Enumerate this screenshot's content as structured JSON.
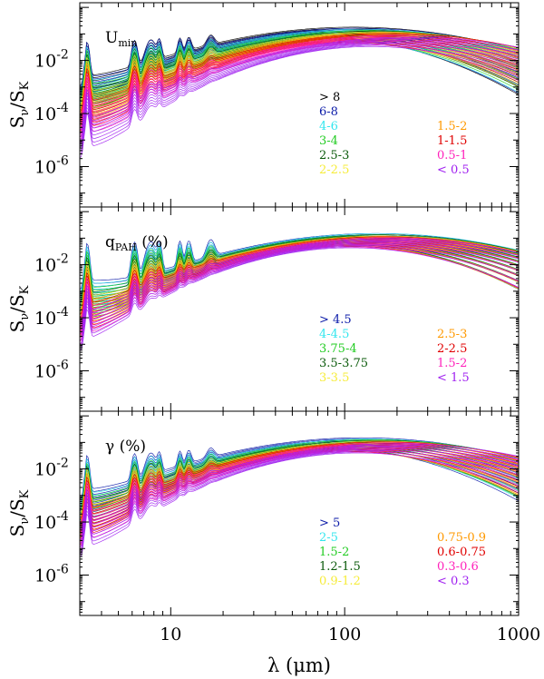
{
  "figure": {
    "xlabel": "λ (μm)",
    "ylabel_main": "S",
    "ylabel_sub1": "ν",
    "ylabel_mid": "/S",
    "ylabel_sub2": "K",
    "x_tick_labels": [
      "10",
      "100",
      "1000"
    ],
    "y_tick_labels": [
      {
        "base": "10",
        "exp": "-2"
      },
      {
        "base": "10",
        "exp": "-4"
      },
      {
        "base": "10",
        "exp": "-6"
      }
    ]
  },
  "chart_data": [
    {
      "type": "line",
      "title_main": "U",
      "title_sub": "min",
      "title_suffix": "",
      "xlabel": "λ (μm)",
      "ylabel": "Sν/SK",
      "xscale": "log",
      "yscale": "log",
      "xlim": [
        3,
        1000
      ],
      "ylim": [
        3e-08,
        1.5
      ],
      "x_ticks": [
        10,
        100,
        1000
      ],
      "y_ticks": [
        0.01,
        0.0001,
        1e-06
      ],
      "legend_left": [
        {
          "label": "> 8",
          "color": "#000000"
        },
        {
          "label": "6-8",
          "color": "#0a1aa8"
        },
        {
          "label": "4-6",
          "color": "#33e6ee"
        },
        {
          "label": "3-4",
          "color": "#22cc22"
        },
        {
          "label": "2.5-3",
          "color": "#0a5a0a"
        },
        {
          "label": "2-2.5",
          "color": "#f6ec3a"
        }
      ],
      "legend_right": [
        {
          "label": "1.5-2",
          "color": "#ff9900"
        },
        {
          "label": "1-1.5",
          "color": "#e00000"
        },
        {
          "label": "0.5-1",
          "color": "#ff22bb"
        },
        {
          "label": "< 0.5",
          "color": "#a020f0"
        }
      ],
      "series_summary": [
        {
          "name": "> 8",
          "peak_wavelength_um": 90,
          "peak_value": 0.12,
          "pah_level": 0.003
        },
        {
          "name": "6-8",
          "peak_wavelength_um": 95,
          "peak_value": 0.11,
          "pah_level": 0.003
        },
        {
          "name": "4-6",
          "peak_wavelength_um": 100,
          "peak_value": 0.1,
          "pah_level": 0.002
        },
        {
          "name": "3-4",
          "peak_wavelength_um": 110,
          "peak_value": 0.09,
          "pah_level": 0.0015
        },
        {
          "name": "2.5-3",
          "peak_wavelength_um": 120,
          "peak_value": 0.085,
          "pah_level": 0.001
        },
        {
          "name": "2-2.5",
          "peak_wavelength_um": 125,
          "peak_value": 0.08,
          "pah_level": 0.0008
        },
        {
          "name": "1.5-2",
          "peak_wavelength_um": 135,
          "peak_value": 0.075,
          "pah_level": 0.0005
        },
        {
          "name": "1-1.5",
          "peak_wavelength_um": 145,
          "peak_value": 0.07,
          "pah_level": 0.0003
        },
        {
          "name": "0.5-1",
          "peak_wavelength_um": 160,
          "peak_value": 0.06,
          "pah_level": 0.0002
        },
        {
          "name": "< 0.5",
          "peak_wavelength_um": 190,
          "peak_value": 0.05,
          "pah_level": 5e-05
        }
      ]
    },
    {
      "type": "line",
      "title_main": "q",
      "title_sub": "PAH",
      "title_suffix": " (%)",
      "xlabel": "λ (μm)",
      "ylabel": "Sν/SK",
      "xscale": "log",
      "yscale": "log",
      "xlim": [
        3,
        1000
      ],
      "ylim": [
        3e-08,
        1.5
      ],
      "x_ticks": [
        10,
        100,
        1000
      ],
      "y_ticks": [
        0.01,
        0.0001,
        1e-06
      ],
      "legend_left": [
        {
          "label": "> 4.5",
          "color": "#0a1aa8"
        },
        {
          "label": "4-4.5",
          "color": "#33e6ee"
        },
        {
          "label": "3.75-4",
          "color": "#22cc22"
        },
        {
          "label": "3.5-3.75",
          "color": "#0a5a0a"
        },
        {
          "label": "3-3.5",
          "color": "#f6ec3a"
        }
      ],
      "legend_right": [
        {
          "label": "2.5-3",
          "color": "#ff9900"
        },
        {
          "label": "2-2.5",
          "color": "#e00000"
        },
        {
          "label": "1.5-2",
          "color": "#ff22bb"
        },
        {
          "label": "< 1.5",
          "color": "#a020f0"
        }
      ],
      "series_summary": [
        {
          "name": "> 4.5",
          "peak_wavelength_um": 120,
          "peak_value": 0.1,
          "pah_level": 0.004
        },
        {
          "name": "4-4.5",
          "peak_wavelength_um": 125,
          "peak_value": 0.1,
          "pah_level": 0.003
        },
        {
          "name": "3.75-4",
          "peak_wavelength_um": 125,
          "peak_value": 0.09,
          "pah_level": 0.002
        },
        {
          "name": "3.5-3.75",
          "peak_wavelength_um": 130,
          "peak_value": 0.09,
          "pah_level": 0.0012
        },
        {
          "name": "3-3.5",
          "peak_wavelength_um": 130,
          "peak_value": 0.08,
          "pah_level": 0.0008
        },
        {
          "name": "2.5-3",
          "peak_wavelength_um": 135,
          "peak_value": 0.08,
          "pah_level": 0.0005
        },
        {
          "name": "2-2.5",
          "peak_wavelength_um": 135,
          "peak_value": 0.075,
          "pah_level": 0.0003
        },
        {
          "name": "1.5-2",
          "peak_wavelength_um": 140,
          "peak_value": 0.07,
          "pah_level": 0.0002
        },
        {
          "name": "< 1.5",
          "peak_wavelength_um": 145,
          "peak_value": 0.065,
          "pah_level": 0.0001
        }
      ]
    },
    {
      "type": "line",
      "title_main": "γ",
      "title_sub": "",
      "title_suffix": " (%)",
      "xlabel": "λ (μm)",
      "ylabel": "Sν/SK",
      "xscale": "log",
      "yscale": "log",
      "xlim": [
        3,
        1000
      ],
      "ylim": [
        3e-08,
        1.5
      ],
      "x_ticks": [
        10,
        100,
        1000
      ],
      "y_ticks": [
        0.01,
        0.0001,
        1e-06
      ],
      "legend_left": [
        {
          "label": "> 5",
          "color": "#0a1aa8"
        },
        {
          "label": "2-5",
          "color": "#33e6ee"
        },
        {
          "label": "1.5-2",
          "color": "#22cc22"
        },
        {
          "label": "1.2-1.5",
          "color": "#0a5a0a"
        },
        {
          "label": "0.9-1.2",
          "color": "#f6ec3a"
        }
      ],
      "legend_right": [
        {
          "label": "0.75-0.9",
          "color": "#ff9900"
        },
        {
          "label": "0.6-0.75",
          "color": "#e00000"
        },
        {
          "label": "0.3-0.6",
          "color": "#ff22bb"
        },
        {
          "label": "< 0.3",
          "color": "#a020f0"
        }
      ],
      "series_summary": [
        {
          "name": "> 5",
          "peak_wavelength_um": 100,
          "peak_value": 0.1,
          "pah_level": 0.002
        },
        {
          "name": "2-5",
          "peak_wavelength_um": 110,
          "peak_value": 0.09,
          "pah_level": 0.0015
        },
        {
          "name": "1.5-2",
          "peak_wavelength_um": 115,
          "peak_value": 0.085,
          "pah_level": 0.001
        },
        {
          "name": "1.2-1.5",
          "peak_wavelength_um": 120,
          "peak_value": 0.08,
          "pah_level": 0.0008
        },
        {
          "name": "0.9-1.2",
          "peak_wavelength_um": 125,
          "peak_value": 0.075,
          "pah_level": 0.0006
        },
        {
          "name": "0.75-0.9",
          "peak_wavelength_um": 130,
          "peak_value": 0.07,
          "pah_level": 0.0004
        },
        {
          "name": "0.6-0.75",
          "peak_wavelength_um": 135,
          "peak_value": 0.07,
          "pah_level": 0.0003
        },
        {
          "name": "0.3-0.6",
          "peak_wavelength_um": 145,
          "peak_value": 0.065,
          "pah_level": 0.0002
        },
        {
          "name": "< 0.3",
          "peak_wavelength_um": 160,
          "peak_value": 0.06,
          "pah_level": 0.0001
        }
      ]
    }
  ]
}
